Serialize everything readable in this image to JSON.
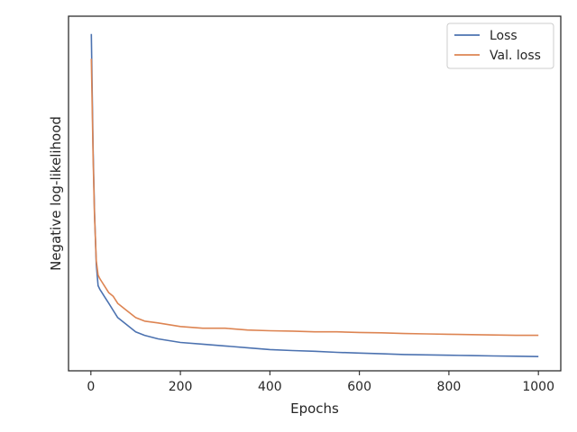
{
  "chart_data": {
    "type": "line",
    "title": "",
    "xlabel": "Epochs",
    "ylabel": "Negative log-likelihood",
    "xlim": [
      -50,
      1050
    ],
    "ylim": [
      0.0,
      1.0
    ],
    "xticks": [
      0,
      200,
      400,
      600,
      800,
      1000
    ],
    "yticks_shown": false,
    "grid": false,
    "legend": {
      "placement": "top-right"
    },
    "series": [
      {
        "name": "Loss",
        "color": "#4c72b0",
        "x": [
          1,
          3,
          5,
          8,
          12,
          16,
          20,
          25,
          30,
          40,
          50,
          60,
          80,
          100,
          120,
          150,
          200,
          250,
          300,
          350,
          400,
          450,
          500,
          550,
          600,
          650,
          700,
          750,
          800,
          850,
          900,
          950,
          1000
        ],
        "y": [
          0.95,
          0.78,
          0.62,
          0.45,
          0.3,
          0.24,
          0.23,
          0.22,
          0.21,
          0.19,
          0.17,
          0.15,
          0.13,
          0.11,
          0.1,
          0.09,
          0.08,
          0.075,
          0.07,
          0.065,
          0.06,
          0.057,
          0.055,
          0.052,
          0.05,
          0.048,
          0.046,
          0.045,
          0.044,
          0.043,
          0.042,
          0.041,
          0.04
        ]
      },
      {
        "name": "Val. loss",
        "color": "#dd8452",
        "x": [
          1,
          3,
          5,
          8,
          12,
          16,
          20,
          25,
          30,
          40,
          50,
          60,
          80,
          100,
          120,
          150,
          200,
          250,
          300,
          350,
          400,
          450,
          500,
          550,
          600,
          650,
          700,
          750,
          800,
          850,
          900,
          950,
          1000
        ],
        "y": [
          0.88,
          0.74,
          0.6,
          0.44,
          0.31,
          0.27,
          0.26,
          0.25,
          0.24,
          0.22,
          0.21,
          0.19,
          0.17,
          0.15,
          0.14,
          0.135,
          0.125,
          0.12,
          0.12,
          0.115,
          0.113,
          0.112,
          0.11,
          0.11,
          0.108,
          0.107,
          0.105,
          0.104,
          0.103,
          0.102,
          0.101,
          0.1,
          0.1
        ]
      }
    ]
  }
}
